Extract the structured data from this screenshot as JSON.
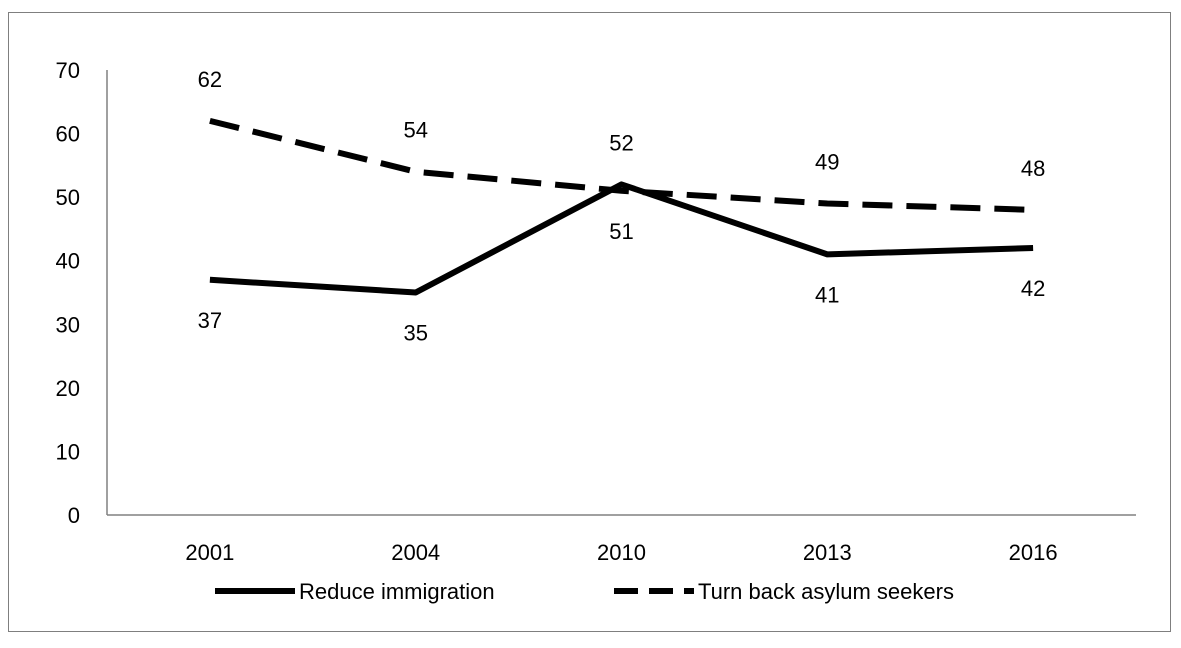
{
  "chart_data": {
    "type": "line",
    "title": "",
    "xlabel": "",
    "ylabel": "",
    "categories": [
      "2001",
      "2004",
      "2010",
      "2013",
      "2016"
    ],
    "ylim": [
      0,
      70
    ],
    "yticks": [
      "0",
      "10",
      "20",
      "30",
      "40",
      "50",
      "60",
      "70"
    ],
    "grid": false,
    "legend_position": "bottom",
    "series": [
      {
        "name": "Reduce immigration",
        "values": [
          37,
          35,
          52,
          41,
          42
        ],
        "labels": [
          "37",
          "35",
          "52",
          "41",
          "42"
        ],
        "style": "solid",
        "color": "#000000"
      },
      {
        "name": "Turn back asylum seekers",
        "values": [
          62,
          54,
          51,
          49,
          48
        ],
        "labels": [
          "62",
          "54",
          "51",
          "49",
          "48"
        ],
        "style": "dashed",
        "color": "#000000"
      }
    ]
  }
}
